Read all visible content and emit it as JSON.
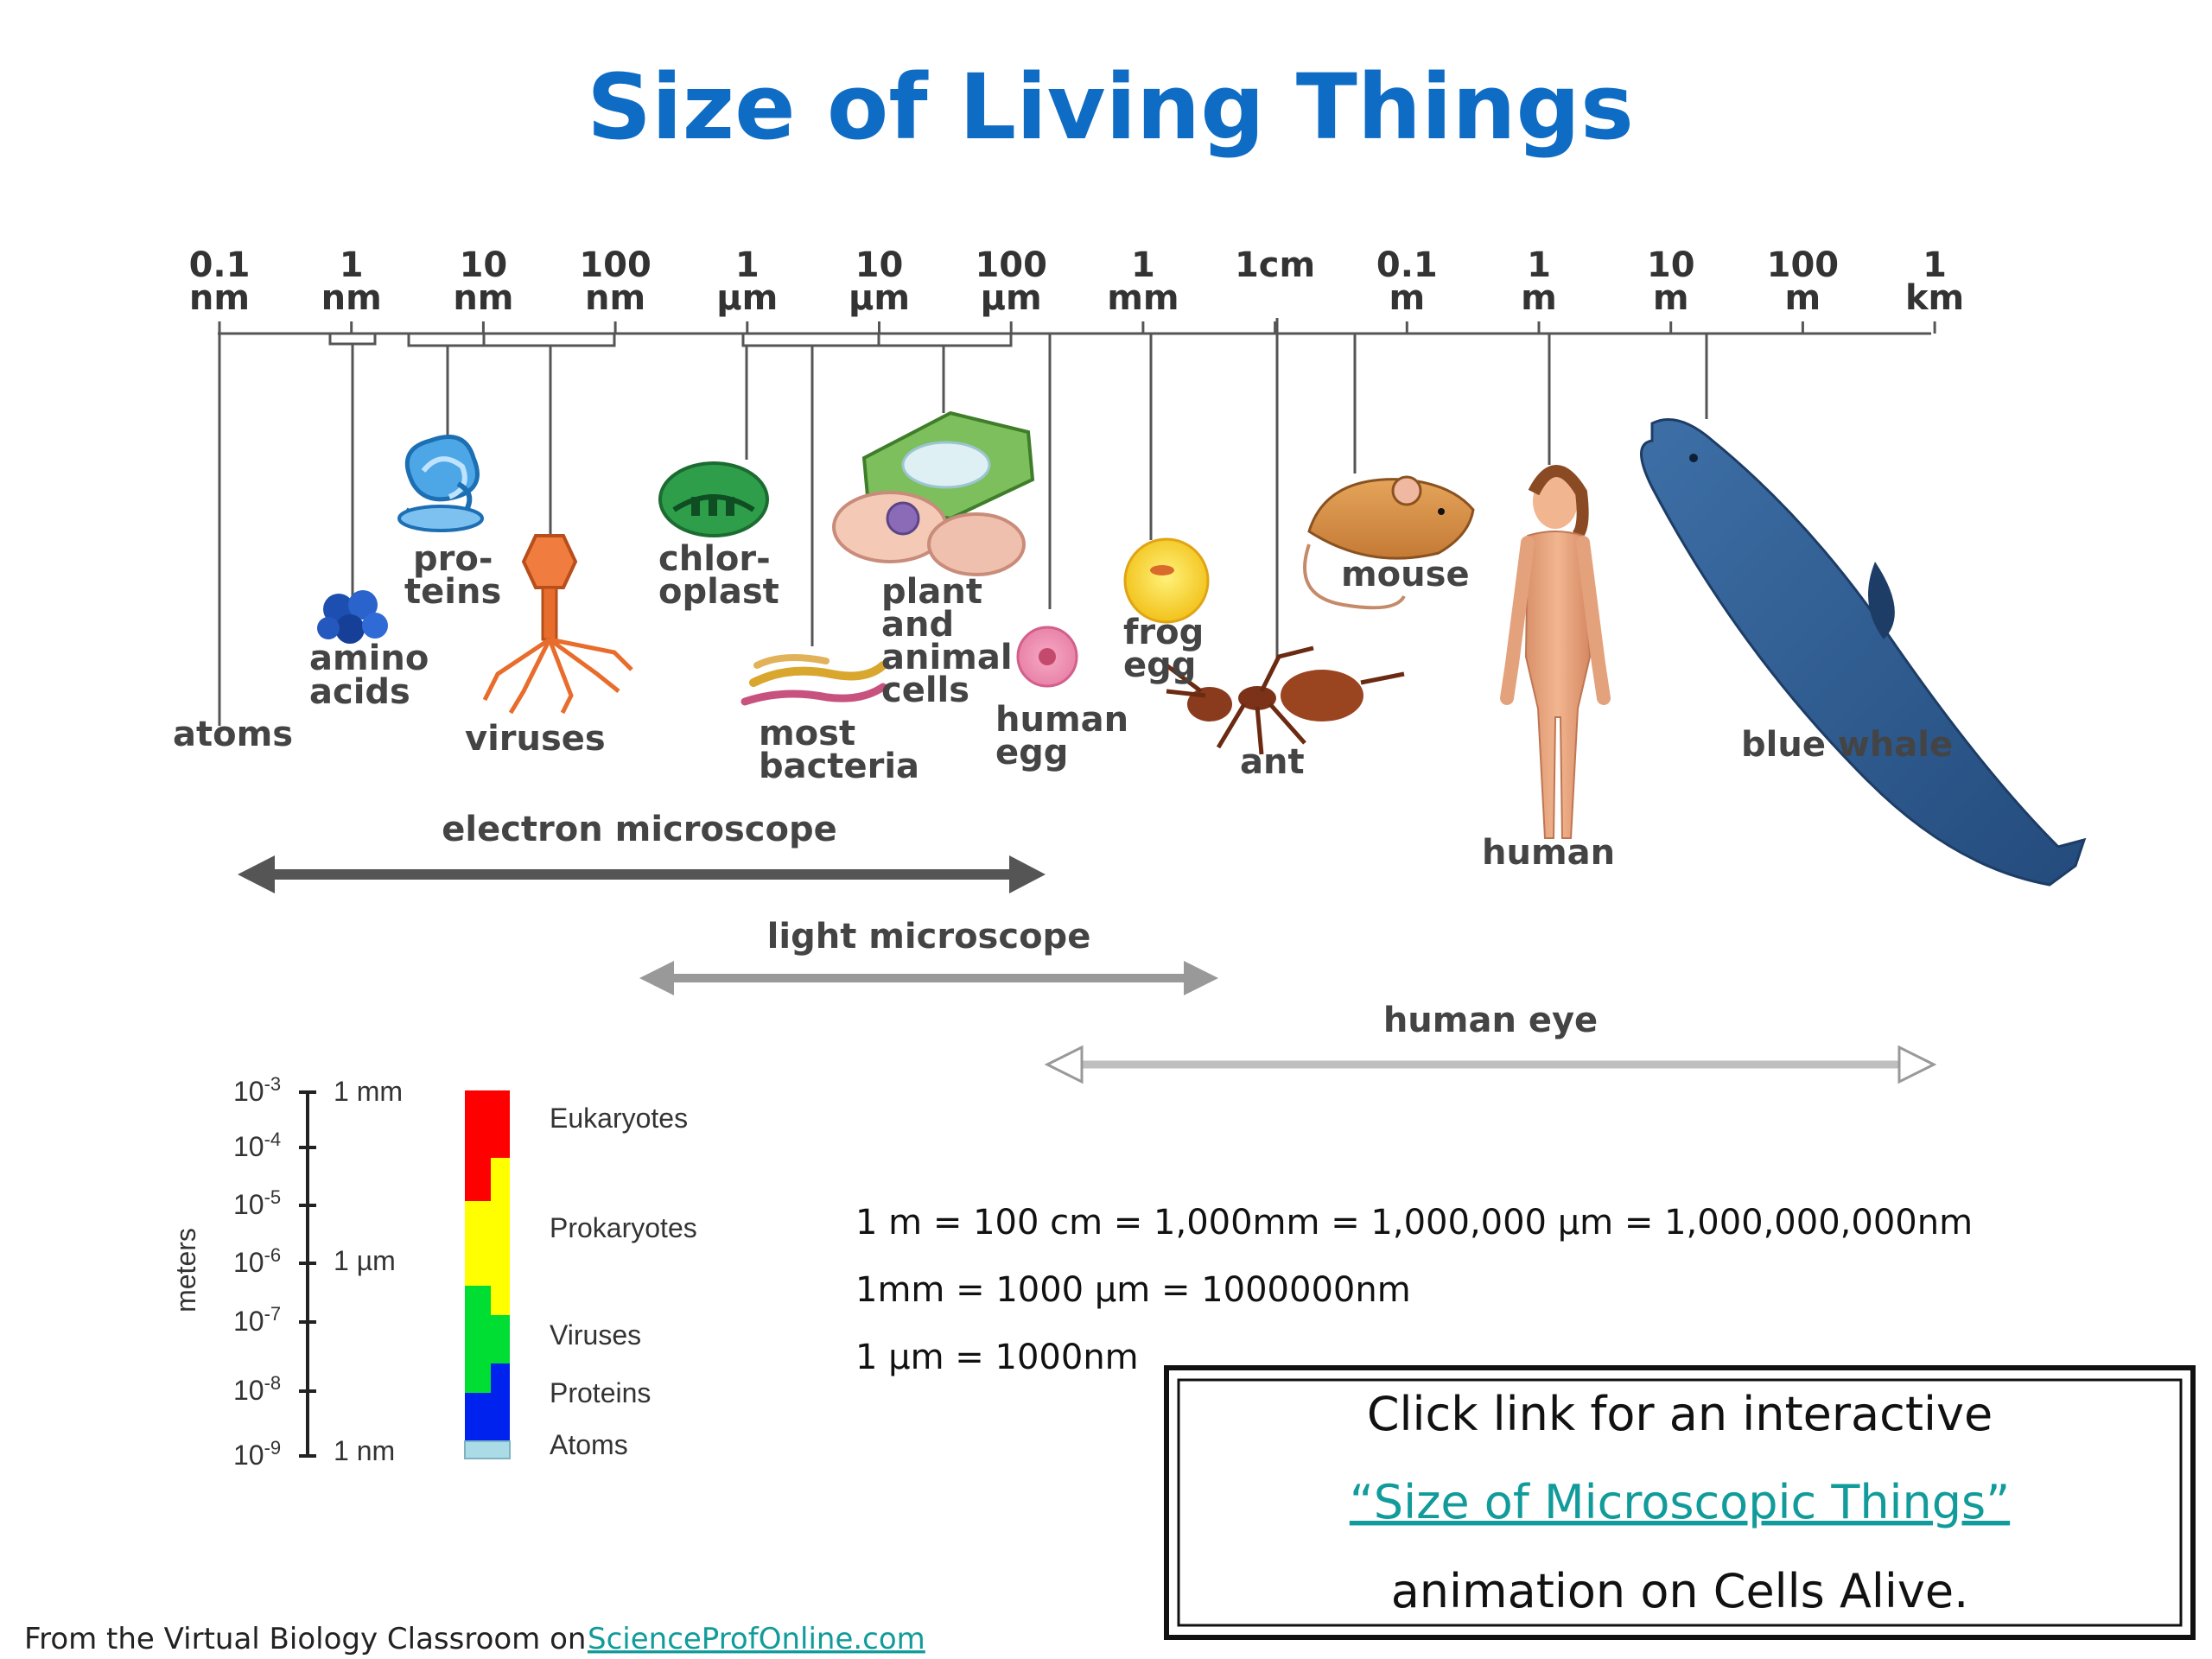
{
  "title": "Size of Living Things",
  "scale": {
    "ticks": [
      {
        "value": "0.1",
        "unit": "nm"
      },
      {
        "value": "1",
        "unit": "nm"
      },
      {
        "value": "10",
        "unit": "nm"
      },
      {
        "value": "100",
        "unit": "nm"
      },
      {
        "value": "1",
        "unit": "µm"
      },
      {
        "value": "10",
        "unit": "µm"
      },
      {
        "value": "100",
        "unit": "µm"
      },
      {
        "value": "1",
        "unit": "mm"
      },
      {
        "value": "1cm",
        "unit": ""
      },
      {
        "value": "0.1",
        "unit": "m"
      },
      {
        "value": "1",
        "unit": "m"
      },
      {
        "value": "10",
        "unit": "m"
      },
      {
        "value": "100",
        "unit": "m"
      },
      {
        "value": "1",
        "unit": "km"
      }
    ]
  },
  "items": {
    "atoms": "atoms",
    "amino_acids": [
      "amino",
      "acids"
    ],
    "proteins": [
      "pro-",
      "teins"
    ],
    "viruses": "viruses",
    "chloroplast": [
      "chlor-",
      "oplast"
    ],
    "most_bacteria": [
      "most",
      "bacteria"
    ],
    "plant_animal_cells": [
      "plant",
      "and",
      "animal",
      "cells"
    ],
    "human_egg": [
      "human",
      "egg"
    ],
    "frog_egg": [
      "frog",
      "egg"
    ],
    "ant": "ant",
    "mouse": "mouse",
    "human": "human",
    "blue_whale": "blue whale"
  },
  "ranges": {
    "electron_microscope": "electron microscope",
    "light_microscope": "light microscope",
    "human_eye": "human eye"
  },
  "inset": {
    "axis_label": "meters",
    "exponents": [
      "10-3",
      "10-4",
      "10-5",
      "10-6",
      "10-7",
      "10-8",
      "10-9"
    ],
    "markers": [
      "1 mm",
      "1 µm",
      "1 nm"
    ],
    "categories": [
      "Eukaryotes",
      "Prokaryotes",
      "Viruses",
      "Proteins",
      "Atoms"
    ],
    "colors": {
      "eukaryotes": "#ff0000",
      "prokaryotes": "#ffff00",
      "viruses": "#00dd33",
      "proteins": "#0022ee",
      "atoms": "#aadbe6"
    }
  },
  "conversions": [
    "1 m = 100 cm = 1,000mm = 1,000,000 µm = 1,000,000,000nm",
    "1mm = 1000 µm = 1000000nm",
    "1 µm = 1000nm"
  ],
  "link_box": {
    "line1": "Click link for an interactive",
    "link_text": "“Size of Microscopic Things”",
    "line3": "animation on Cells Alive."
  },
  "footer": {
    "text": "From the  Virtual Biology Classroom on",
    "link": "ScienceProfOnline.com"
  },
  "colors": {
    "title": "#0f6cc4",
    "link": "#129b9b"
  }
}
